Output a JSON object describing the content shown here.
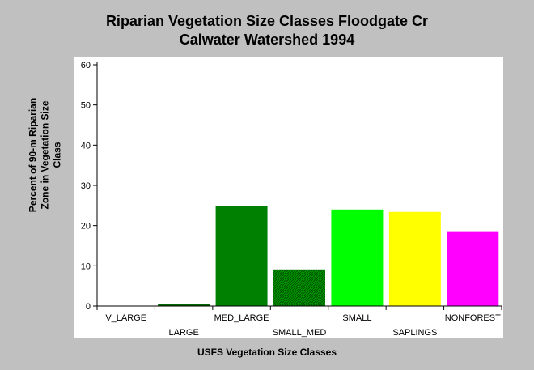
{
  "chart_data": {
    "type": "bar",
    "title": "Riparian Vegetation Size Classes Floodgate Cr",
    "subtitle": "Calwater Watershed 1994",
    "xlabel": "USFS Vegetation Size Classes",
    "ylabel_lines": [
      "Percent of 90-m Riparian",
      "Zone in Vegetation Size",
      "Class"
    ],
    "categories": [
      "V_LARGE",
      "LARGE",
      "MED_LARGE",
      "SMALL_MED",
      "SMALL",
      "SAPLINGS",
      "NONFOREST"
    ],
    "values": [
      0,
      0.4,
      24.8,
      9.1,
      24.0,
      23.4,
      18.6
    ],
    "colors": [
      "#006400",
      "#006400",
      "#008000",
      "#006400",
      "#00ff00",
      "#ffff00",
      "#ff00ff"
    ],
    "hatched": [
      false,
      false,
      false,
      true,
      false,
      false,
      false
    ],
    "ylim": [
      0,
      60
    ],
    "yticks": [
      0,
      10,
      20,
      30,
      40,
      50,
      60
    ],
    "grid": false,
    "legend": "none"
  }
}
